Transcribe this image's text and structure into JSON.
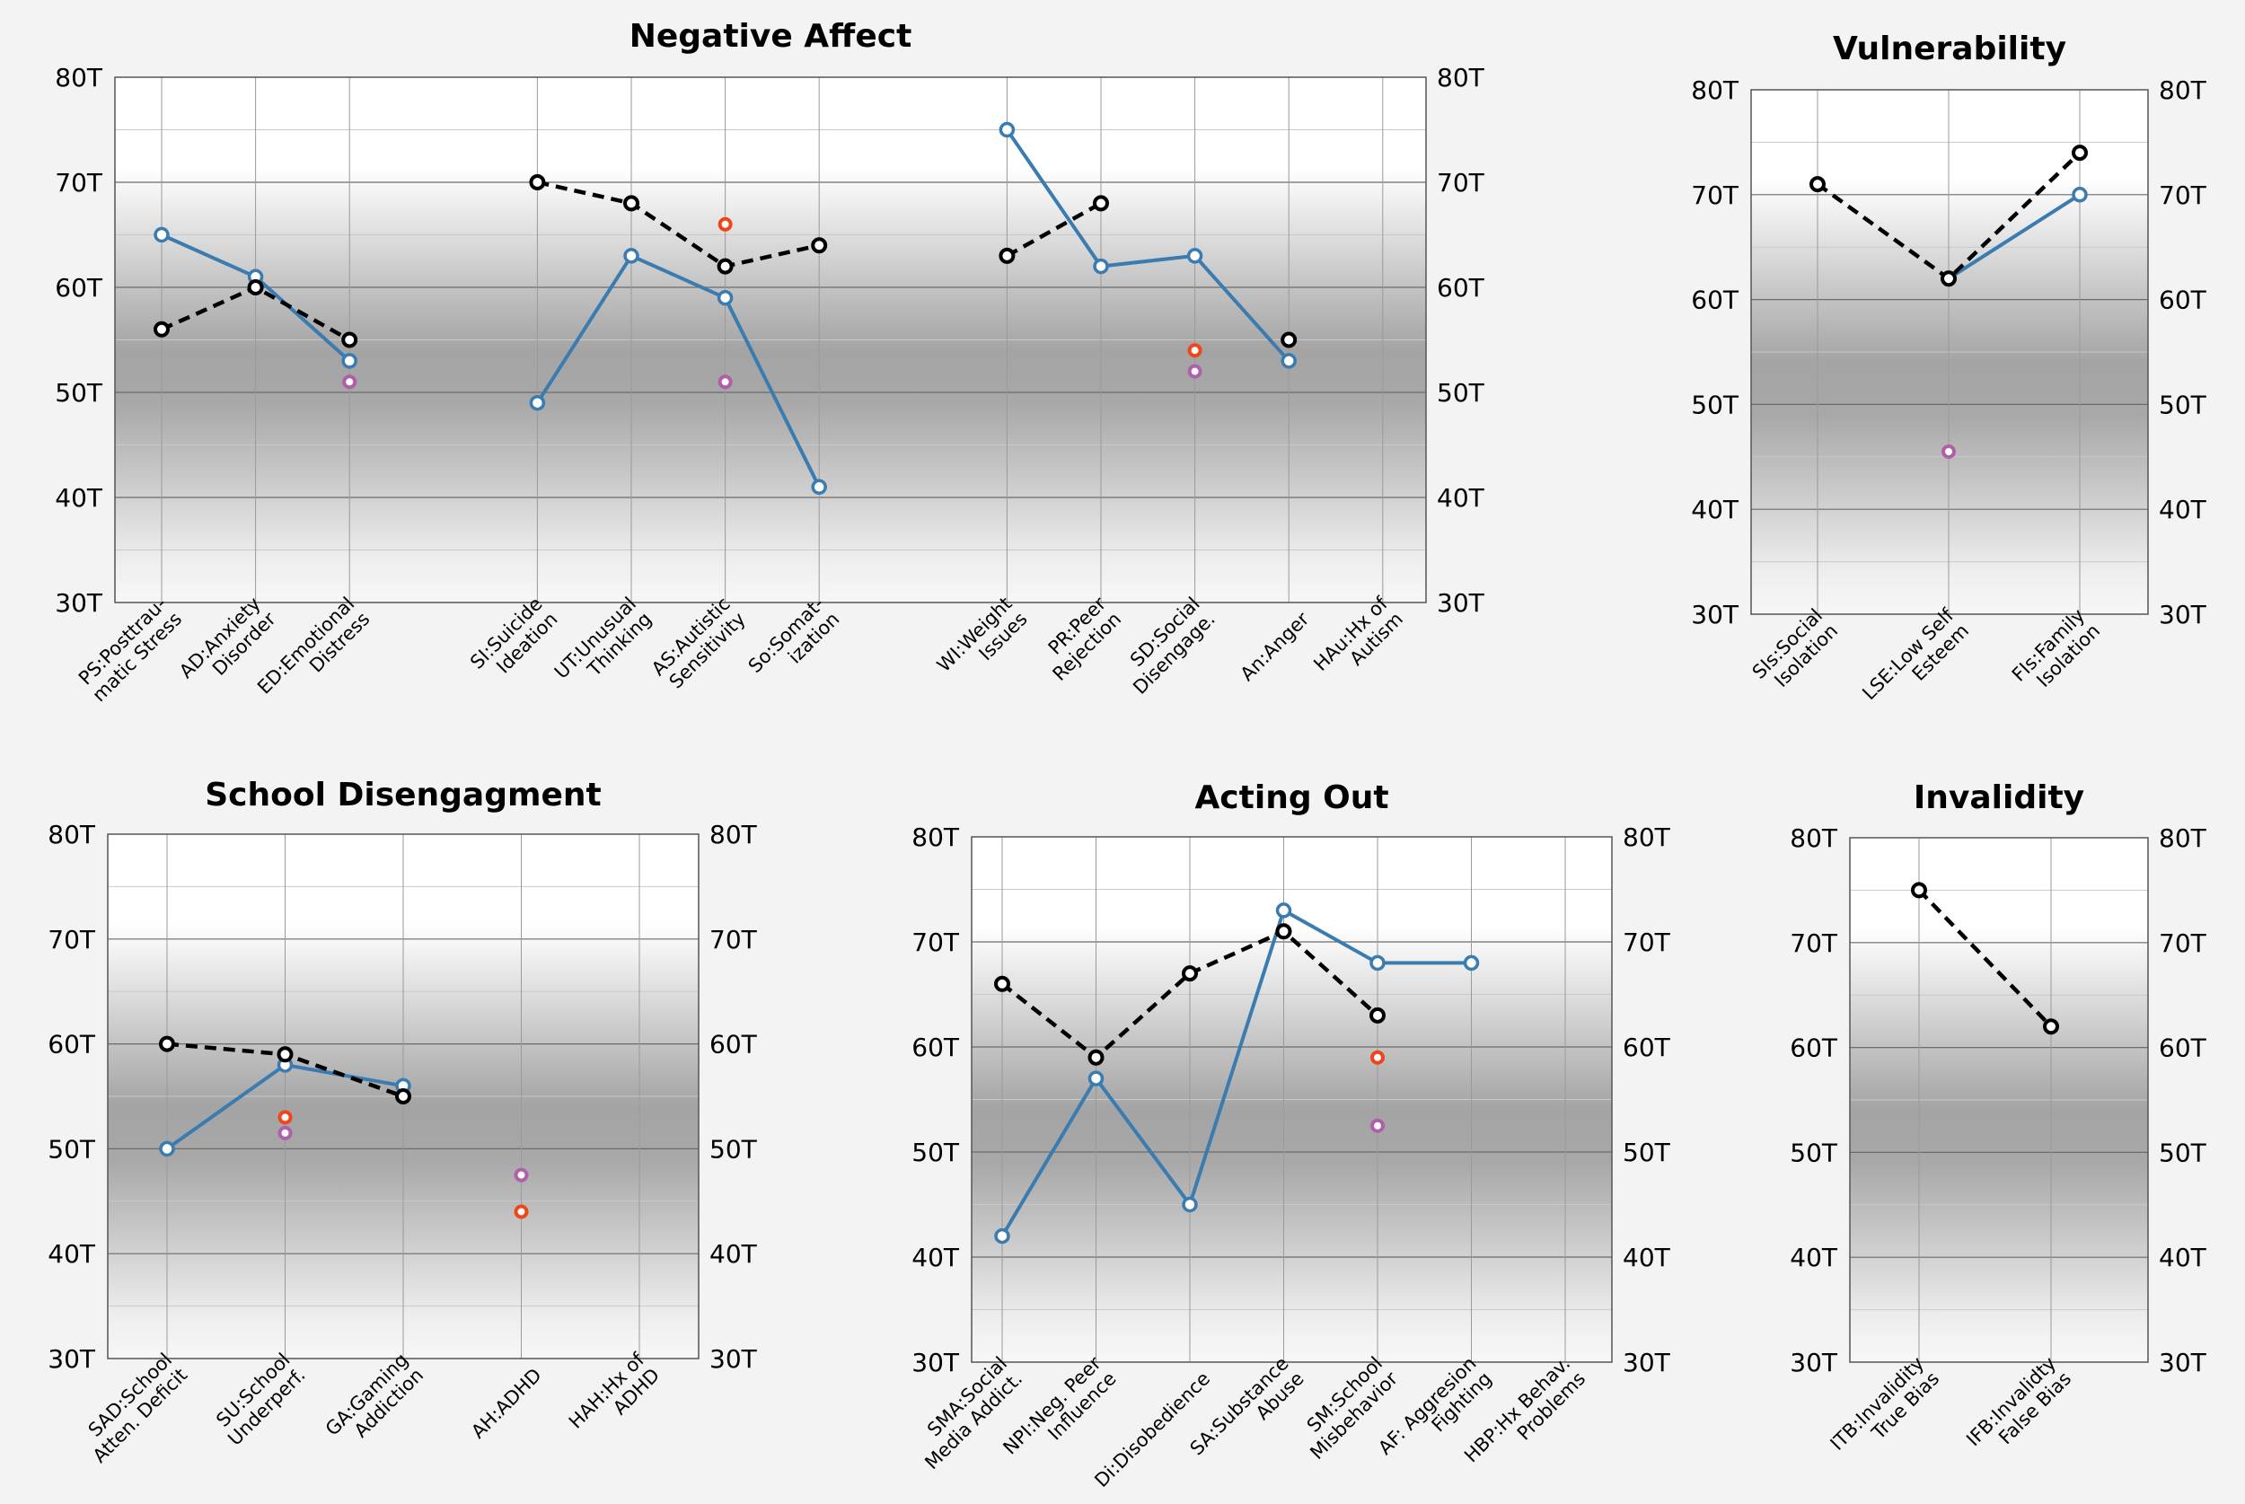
{
  "chart_data": [
    {
      "id": "negative-affect",
      "type": "line",
      "title": "Negative Affect",
      "ylim": [
        30,
        80
      ],
      "yticks": [
        "30T",
        "40T",
        "50T",
        "60T",
        "70T",
        "80T"
      ],
      "categories": [
        [
          "PS:Posttrau-",
          "matic Stress"
        ],
        [
          "AD:Anxiety",
          "Disorder"
        ],
        [
          "ED:Emotional",
          "Distress"
        ],
        null,
        [
          "SI:Suicide",
          "Ideation"
        ],
        [
          "UT:Unusual",
          "Thinking"
        ],
        [
          "AS:Autistic",
          "Sensitivity"
        ],
        [
          "So:Somat-",
          "ization"
        ],
        null,
        [
          "WI:Weight",
          "Issues"
        ],
        [
          "PR:Peer",
          "Rejection"
        ],
        [
          "SD:Social",
          "Disengage."
        ],
        [
          "An:Anger"
        ],
        [
          "HAu:Hx of",
          "Autism"
        ]
      ],
      "series": [
        {
          "name": "blue",
          "values": [
            65,
            61,
            53,
            null,
            49,
            63,
            59,
            41,
            null,
            75,
            62,
            63,
            53,
            null
          ]
        },
        {
          "name": "black",
          "values": [
            56,
            60,
            55,
            null,
            70,
            68,
            62,
            64,
            null,
            63,
            68,
            null,
            55,
            null
          ]
        },
        {
          "name": "red",
          "values": [
            null,
            null,
            null,
            null,
            null,
            null,
            66,
            null,
            null,
            null,
            null,
            54,
            null,
            null
          ]
        },
        {
          "name": "purple",
          "values": [
            null,
            null,
            51,
            null,
            null,
            null,
            51,
            null,
            null,
            null,
            null,
            52,
            null,
            null
          ]
        }
      ]
    },
    {
      "id": "vulnerability",
      "type": "line",
      "title": "Vulnerability",
      "ylim": [
        30,
        80
      ],
      "yticks": [
        "30T",
        "40T",
        "50T",
        "60T",
        "70T",
        "80T"
      ],
      "categories": [
        [
          "SIs:Social",
          "Isolation"
        ],
        [
          "LSE:Low Self",
          "Esteem"
        ],
        [
          "FIs:Family",
          "Isolation"
        ]
      ],
      "series": [
        {
          "name": "blue",
          "values": [
            null,
            62,
            70
          ]
        },
        {
          "name": "black",
          "values": [
            71,
            62,
            74
          ]
        },
        {
          "name": "red",
          "values": [
            null,
            null,
            null
          ]
        },
        {
          "name": "purple",
          "values": [
            null,
            45.5,
            null
          ]
        }
      ]
    },
    {
      "id": "school-disengagement",
      "type": "line",
      "title": "School Disengagment",
      "ylim": [
        30,
        80
      ],
      "yticks": [
        "30T",
        "40T",
        "50T",
        "60T",
        "70T",
        "80T"
      ],
      "categories": [
        [
          "SAD:School",
          "Atten. Deficit"
        ],
        [
          "SU:School",
          "Underperf."
        ],
        [
          "GA:Gaming",
          "Addiction"
        ],
        [
          "AH:ADHD"
        ],
        [
          "HAH:Hx of",
          "ADHD"
        ]
      ],
      "series": [
        {
          "name": "blue",
          "values": [
            50,
            58,
            56,
            null,
            null
          ]
        },
        {
          "name": "black",
          "values": [
            60,
            59,
            55,
            null,
            null
          ]
        },
        {
          "name": "red",
          "values": [
            null,
            53,
            null,
            44,
            null
          ]
        },
        {
          "name": "purple",
          "values": [
            null,
            51.5,
            null,
            47.5,
            null
          ]
        }
      ]
    },
    {
      "id": "acting-out",
      "type": "line",
      "title": "Acting Out",
      "ylim": [
        30,
        80
      ],
      "yticks": [
        "30T",
        "40T",
        "50T",
        "60T",
        "70T",
        "80T"
      ],
      "categories": [
        [
          "SMA:Social",
          "Media Addict."
        ],
        [
          "NPI:Neg. Peer",
          "Influence"
        ],
        [
          "Di:Disobedience"
        ],
        [
          "SA:Substance",
          "Abuse"
        ],
        [
          "SM:School",
          "Misbehavior"
        ],
        [
          "AF: Aggresion",
          "Fighting"
        ],
        [
          "HBP:Hx Behav.",
          "Problems"
        ]
      ],
      "series": [
        {
          "name": "blue",
          "values": [
            42,
            57,
            45,
            73,
            68,
            68,
            null
          ]
        },
        {
          "name": "black",
          "values": [
            66,
            59,
            67,
            71,
            63,
            null,
            null
          ]
        },
        {
          "name": "red",
          "values": [
            null,
            null,
            null,
            null,
            59,
            null,
            null
          ]
        },
        {
          "name": "purple",
          "values": [
            null,
            null,
            null,
            null,
            52.5,
            null,
            null
          ]
        }
      ]
    },
    {
      "id": "invalidity",
      "type": "line",
      "title": "Invalidity",
      "ylim": [
        30,
        80
      ],
      "yticks": [
        "30T",
        "40T",
        "50T",
        "60T",
        "70T",
        "80T"
      ],
      "categories": [
        [
          "ITB:Invalidity",
          "True Bias"
        ],
        [
          "IFB:Invalidty",
          "False Bias"
        ]
      ],
      "series": [
        {
          "name": "blue",
          "values": [
            null,
            null
          ]
        },
        {
          "name": "black",
          "values": [
            75,
            62
          ]
        },
        {
          "name": "red",
          "values": [
            null,
            null
          ]
        },
        {
          "name": "purple",
          "values": [
            null,
            null
          ]
        }
      ]
    }
  ],
  "colors": {
    "blue": "#3a7bb0",
    "black": "#000000",
    "red": "#f0451a",
    "purple": "#b060a8"
  }
}
